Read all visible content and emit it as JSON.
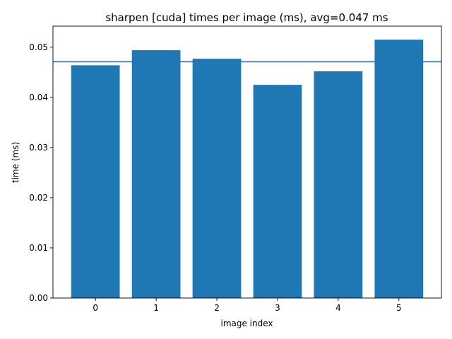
{
  "chart_data": {
    "type": "bar",
    "title": "sharpen [cuda] times per image (ms), avg=0.047 ms",
    "xlabel": "image index",
    "ylabel": "time (ms)",
    "categories": [
      "0",
      "1",
      "2",
      "3",
      "4",
      "5"
    ],
    "values": [
      0.0464,
      0.0494,
      0.0477,
      0.0425,
      0.0452,
      0.0515
    ],
    "average": 0.0471,
    "ylim": [
      0,
      0.0542
    ],
    "yticks": [
      0.0,
      0.01,
      0.02,
      0.03,
      0.04,
      0.05
    ],
    "ytick_labels": [
      "0.00",
      "0.01",
      "0.02",
      "0.03",
      "0.04",
      "0.05"
    ],
    "bar_color": "#1f77b4",
    "avg_line_color": "#1f77b4",
    "grid": false,
    "legend": false
  }
}
